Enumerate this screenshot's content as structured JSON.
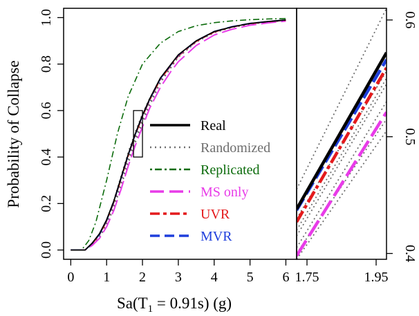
{
  "chart_data": [
    {
      "type": "line",
      "xlabel": "Sa(T1 = 0.91s) (g)",
      "ylabel": "Probability of Collapse",
      "xlim": [
        -0.2,
        6.3
      ],
      "ylim": [
        -0.04,
        1.04
      ],
      "x_ticks": [
        0,
        1,
        2,
        3,
        4,
        5,
        6
      ],
      "y_ticks": [
        0.0,
        0.2,
        0.4,
        0.6,
        0.8,
        1.0
      ],
      "tick_labels_y": [
        "0.0",
        "0.2",
        "0.4",
        "0.6",
        "0.8",
        "1.0"
      ],
      "grid": false,
      "legend_position": "lower-right",
      "zoom_box": {
        "x": [
          1.75,
          2.0
        ],
        "y": [
          0.4,
          0.6
        ]
      },
      "series": [
        {
          "name": "Real",
          "color": "#000000",
          "style": "solid",
          "x": [
            0,
            0.4,
            0.6,
            0.8,
            1.0,
            1.2,
            1.4,
            1.6,
            1.8,
            2.0,
            2.2,
            2.5,
            2.8,
            3.0,
            3.5,
            4.0,
            4.5,
            5.0,
            5.5,
            6.0
          ],
          "y": [
            0,
            0,
            0.03,
            0.07,
            0.13,
            0.21,
            0.31,
            0.41,
            0.5,
            0.58,
            0.65,
            0.74,
            0.8,
            0.84,
            0.9,
            0.94,
            0.96,
            0.975,
            0.983,
            0.99
          ]
        },
        {
          "name": "Randomized",
          "color": "#6e6e6e",
          "style": "dotted",
          "x": [
            0,
            0.4,
            0.6,
            0.8,
            1.0,
            1.2,
            1.4,
            1.6,
            1.8,
            2.0,
            2.2,
            2.5,
            2.8,
            3.0,
            3.5,
            4.0,
            4.5,
            5.0,
            5.5,
            6.0
          ],
          "y": [
            0,
            0,
            0.025,
            0.06,
            0.12,
            0.2,
            0.3,
            0.4,
            0.49,
            0.57,
            0.64,
            0.73,
            0.79,
            0.83,
            0.895,
            0.935,
            0.958,
            0.972,
            0.98,
            0.988
          ]
        },
        {
          "name": "Replicated",
          "color": "#0b6b0b",
          "style": "dot-dash",
          "x": [
            0,
            0.3,
            0.5,
            0.7,
            1.0,
            1.3,
            1.6,
            2.0,
            2.5,
            3.0,
            3.5,
            4.0,
            4.5,
            5.0,
            5.5,
            6.0
          ],
          "y": [
            0,
            0,
            0.04,
            0.12,
            0.3,
            0.5,
            0.66,
            0.8,
            0.89,
            0.94,
            0.965,
            0.978,
            0.986,
            0.991,
            0.994,
            0.996
          ]
        },
        {
          "name": "MS only",
          "color": "#e83be8",
          "style": "long-dash",
          "x": [
            0,
            0.4,
            0.6,
            0.8,
            1.0,
            1.2,
            1.4,
            1.6,
            1.8,
            2.0,
            2.2,
            2.5,
            2.8,
            3.0,
            3.5,
            4.0,
            4.5,
            5.0,
            5.5,
            6.0
          ],
          "y": [
            0,
            0,
            0.02,
            0.05,
            0.1,
            0.17,
            0.26,
            0.36,
            0.45,
            0.53,
            0.61,
            0.7,
            0.77,
            0.81,
            0.88,
            0.925,
            0.95,
            0.967,
            0.977,
            0.985
          ]
        },
        {
          "name": "UVR",
          "color": "#e41a1c",
          "style": "dash-dot",
          "x": [
            0,
            0.4,
            0.6,
            0.8,
            1.0,
            1.2,
            1.4,
            1.6,
            1.8,
            2.0,
            2.2,
            2.5,
            2.8,
            3.0,
            3.5,
            4.0,
            4.5,
            5.0,
            5.5,
            6.0
          ],
          "y": [
            0,
            0,
            0.028,
            0.065,
            0.125,
            0.205,
            0.305,
            0.405,
            0.495,
            0.575,
            0.645,
            0.735,
            0.795,
            0.835,
            0.898,
            0.938,
            0.96,
            0.974,
            0.982,
            0.989
          ]
        },
        {
          "name": "MVR",
          "color": "#1f3fdc",
          "style": "dashed",
          "x": [
            0,
            0.4,
            0.6,
            0.8,
            1.0,
            1.2,
            1.4,
            1.6,
            1.8,
            2.0,
            2.2,
            2.5,
            2.8,
            3.0,
            3.5,
            4.0,
            4.5,
            5.0,
            5.5,
            6.0
          ],
          "y": [
            0,
            0,
            0.029,
            0.067,
            0.128,
            0.208,
            0.308,
            0.408,
            0.498,
            0.578,
            0.648,
            0.738,
            0.798,
            0.838,
            0.9,
            0.94,
            0.961,
            0.975,
            0.983,
            0.99
          ]
        }
      ],
      "extra_grey_curves_y_offsets": [
        -0.03,
        -0.02,
        -0.01,
        0.01,
        0.02
      ]
    },
    {
      "type": "line",
      "description_role": "zoomed inset",
      "xlim": [
        1.72,
        1.98
      ],
      "ylim": [
        0.395,
        0.61
      ],
      "x_ticks": [
        1.75,
        1.95
      ],
      "tick_labels_x": [
        "1.75",
        "1.95"
      ],
      "y_ticks": [
        0.4,
        0.5,
        0.6
      ],
      "tick_labels_y": [
        "0.4",
        "0.5",
        "0.6"
      ],
      "series": [
        {
          "name": "Real",
          "color": "#000000",
          "style": "solid",
          "x": [
            1.72,
            1.98
          ],
          "y": [
            0.438,
            0.572
          ]
        },
        {
          "name": "MVR",
          "color": "#1f3fdc",
          "style": "dashed",
          "x": [
            1.72,
            1.98
          ],
          "y": [
            0.437,
            0.566
          ]
        },
        {
          "name": "UVR",
          "color": "#e41a1c",
          "style": "dash-dot",
          "x": [
            1.72,
            1.98
          ],
          "y": [
            0.427,
            0.559
          ]
        },
        {
          "name": "MS only",
          "color": "#e83be8",
          "style": "long-dash",
          "x": [
            1.72,
            1.98
          ],
          "y": [
            0.398,
            0.521
          ]
        },
        {
          "name": "Randomized",
          "color": "#6e6e6e",
          "style": "dotted",
          "x": [
            1.72,
            1.98
          ],
          "y": [
            0.415,
            0.545
          ]
        },
        {
          "name": "Randomized",
          "color": "#6e6e6e",
          "style": "dotted",
          "x": [
            1.72,
            1.98
          ],
          "y": [
            0.455,
            0.61
          ]
        },
        {
          "name": "Randomized",
          "color": "#6e6e6e",
          "style": "dotted",
          "x": [
            1.72,
            1.98
          ],
          "y": [
            0.405,
            0.53
          ]
        },
        {
          "name": "Randomized",
          "color": "#6e6e6e",
          "style": "dotted",
          "x": [
            1.72,
            1.98
          ],
          "y": [
            0.42,
            0.55
          ]
        },
        {
          "name": "Randomized",
          "color": "#6e6e6e",
          "style": "dotted",
          "x": [
            1.72,
            1.98
          ],
          "y": [
            0.43,
            0.556
          ]
        },
        {
          "name": "Randomized",
          "color": "#6e6e6e",
          "style": "dotted",
          "x": [
            1.72,
            1.98
          ],
          "y": [
            0.4,
            0.515
          ]
        },
        {
          "name": "Randomized",
          "color": "#6e6e6e",
          "style": "dotted",
          "x": [
            1.72,
            1.98
          ],
          "y": [
            0.395,
            0.505
          ]
        }
      ]
    }
  ],
  "legend": [
    {
      "label": "Real",
      "color": "#000000",
      "style": "solid"
    },
    {
      "label": "Randomized",
      "color": "#6e6e6e",
      "style": "dotted"
    },
    {
      "label": "Replicated",
      "color": "#0b6b0b",
      "style": "dot-dash"
    },
    {
      "label": "MS only",
      "color": "#e83be8",
      "style": "long-dash"
    },
    {
      "label": "UVR",
      "color": "#e41a1c",
      "style": "dash-dot"
    },
    {
      "label": "MVR",
      "color": "#1f3fdc",
      "style": "dashed"
    }
  ]
}
